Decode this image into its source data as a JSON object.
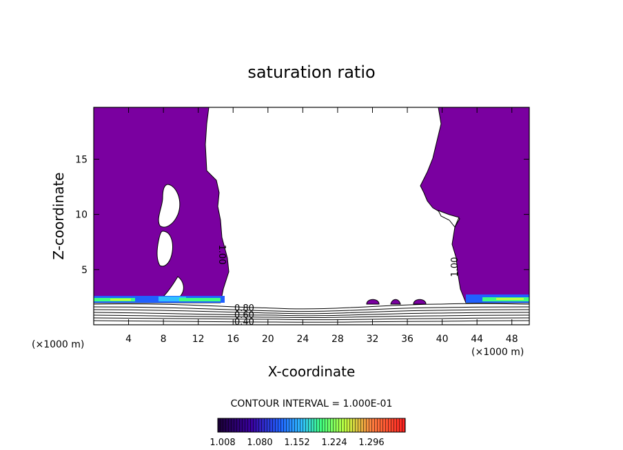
{
  "chart_data": {
    "type": "contour",
    "title": "saturation ratio",
    "xlabel": "X-coordinate",
    "ylabel": "Z-coordinate",
    "x_unit": "(×1000 m)",
    "x_unit_right": "(×1000 m)",
    "xlim": [
      0,
      50
    ],
    "ylim": [
      0,
      19.7
    ],
    "x_ticks": [
      4,
      8,
      12,
      16,
      20,
      24,
      28,
      32,
      36,
      40,
      44,
      48
    ],
    "y_ticks": [
      5,
      10,
      15
    ],
    "contour_labels": [
      {
        "text": "1.00",
        "x": 14.6,
        "z": 7.2,
        "rotate": 90
      },
      {
        "text": "1.00",
        "x": 41.0,
        "z": 5.0,
        "rotate": -90
      },
      {
        "text": "0.80",
        "x": 17.7,
        "z": 1.45
      },
      {
        "text": "0.60",
        "x": 17.7,
        "z": 1.0
      },
      {
        "text": "0.40",
        "x": 17.7,
        "z": 0.3
      }
    ],
    "contour_interval_text": "CONTOUR INTERVAL = 1.000E-01",
    "colorbar": {
      "ticks": [
        "1.008",
        "1.080",
        "1.152",
        "1.224",
        "1.296"
      ],
      "colors": [
        "#1a0035",
        "#3a00a0",
        "#2060ff",
        "#30c0ff",
        "#40ff80",
        "#c0ff40",
        "#ff8040",
        "#ff2020"
      ]
    },
    "fill_color": "#7a00a0"
  }
}
